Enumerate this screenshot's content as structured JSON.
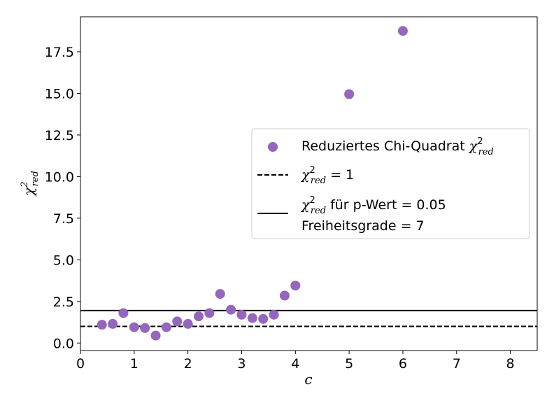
{
  "chart_data": {
    "type": "scatter",
    "xlabel": "c",
    "ylabel_symbol": "χ",
    "ylabel_sup": "2",
    "ylabel_sub": "red",
    "xlim": [
      0,
      8.5
    ],
    "ylim": [
      -0.45,
      19.6
    ],
    "xticks": [
      0,
      1,
      2,
      3,
      4,
      5,
      6,
      7,
      8
    ],
    "yticks": [
      0.0,
      2.5,
      5.0,
      7.5,
      10.0,
      12.5,
      15.0,
      17.5
    ],
    "ytick_labels": [
      "0.0",
      "2.5",
      "5.0",
      "7.5",
      "10.0",
      "12.5",
      "15.0",
      "17.5"
    ],
    "grid": false,
    "legend_position": "center-right",
    "series": [
      {
        "name_text": "Reduziertes Chi-Quadrat ",
        "name_symbol": "χ",
        "name_sup": "2",
        "name_sub": "red",
        "kind": "scatter",
        "color": "#9467bd",
        "x": [
          0.4,
          0.6,
          0.8,
          1.0,
          1.2,
          1.4,
          1.6,
          1.8,
          2.0,
          2.2,
          2.4,
          2.6,
          2.8,
          3.0,
          3.2,
          3.4,
          3.6,
          3.8,
          4.0,
          5.0,
          6.0
        ],
        "y": [
          1.1,
          1.15,
          1.8,
          0.95,
          0.9,
          0.45,
          0.95,
          1.3,
          1.15,
          1.6,
          1.8,
          2.95,
          2.0,
          1.7,
          1.5,
          1.45,
          1.7,
          2.85,
          3.45,
          14.95,
          18.75
        ]
      },
      {
        "name_symbol": "χ",
        "name_sup": "2",
        "name_sub": "red",
        "name_text": " = 1",
        "kind": "hline",
        "style": "dashed",
        "color": "#000000",
        "y": 1.0
      },
      {
        "name_symbol": "χ",
        "name_sup": "2",
        "name_sub": "red",
        "name_text": " für p-Wert = 0.05",
        "name_line2": "Freiheitsgrade = 7",
        "kind": "hline",
        "style": "solid",
        "color": "#000000",
        "y": 1.95
      }
    ]
  }
}
